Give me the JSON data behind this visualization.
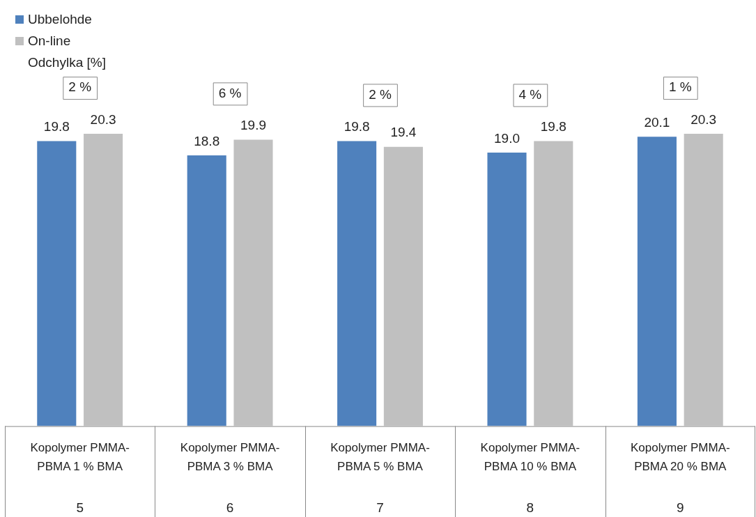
{
  "chart_data": {
    "type": "bar",
    "categories": [
      "Kopolymer PMMA-PBMA 1 % BMA",
      "Kopolymer PMMA-PBMA 3 % BMA",
      "Kopolymer PMMA-PBMA 5 % BMA",
      "Kopolymer PMMA-PBMA 10 % BMA",
      "Kopolymer PMMA-PBMA 20 % BMA"
    ],
    "series": [
      {
        "name": "Ubbelohde",
        "color": "#4f81bd",
        "values": [
          19.8,
          18.8,
          19.8,
          19.0,
          20.1
        ],
        "value_labels": [
          "19.8",
          "18.8",
          "19.8",
          "19.0",
          "20.1"
        ]
      },
      {
        "name": "On-line",
        "color": "#c0c0c0",
        "values": [
          20.3,
          19.9,
          19.4,
          19.8,
          20.3
        ],
        "value_labels": [
          "20.3",
          "19.9",
          "19.4",
          "19.8",
          "20.3"
        ]
      }
    ],
    "legend": "top left",
    "grid": false,
    "annotations": [
      "Odchylka [%]",
      "2 %",
      "6 %",
      "2 %",
      "4 %",
      "1 %",
      "5",
      "6",
      "7",
      "8",
      "9"
    ]
  }
}
